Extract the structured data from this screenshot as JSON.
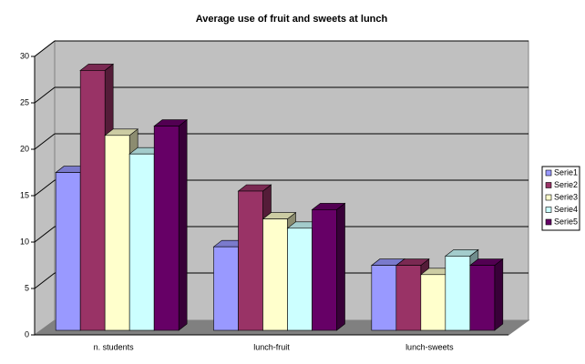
{
  "chart_data": {
    "type": "bar3d",
    "title": "Average use of fruit and sweets at lunch",
    "categories": [
      "n. students",
      "lunch-fruit",
      "lunch-sweets"
    ],
    "series": [
      {
        "name": "Serie1",
        "color": "#9999ff",
        "values": [
          17,
          9,
          7
        ]
      },
      {
        "name": "Serie2",
        "color": "#993366",
        "values": [
          28,
          15,
          7
        ]
      },
      {
        "name": "Serie3",
        "color": "#ffffcc",
        "values": [
          21,
          12,
          6
        ]
      },
      {
        "name": "Serie4",
        "color": "#ccffff",
        "values": [
          19,
          11,
          8
        ]
      },
      {
        "name": "Serie5",
        "color": "#660066",
        "values": [
          22,
          13,
          7
        ]
      }
    ],
    "ylim": [
      0,
      30
    ],
    "yticks": [
      0,
      5,
      10,
      15,
      20,
      25,
      30
    ],
    "grid": true,
    "legend": "right"
  }
}
